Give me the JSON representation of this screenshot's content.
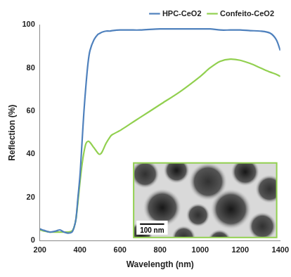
{
  "chart_data": {
    "type": "line",
    "x_label": "Wavelength (nm)",
    "y_label": "Reflection (%)",
    "x": [
      200,
      220,
      250,
      280,
      300,
      320,
      340,
      360,
      370,
      380,
      390,
      400,
      410,
      420,
      430,
      440,
      450,
      470,
      490,
      500,
      510,
      530,
      550,
      560,
      600,
      650,
      700,
      800,
      900,
      1000,
      1050,
      1100,
      1150,
      1200,
      1250,
      1300,
      1350,
      1380,
      1400
    ],
    "series": [
      {
        "name": "HPC-CeO2",
        "color": "#4f81bd",
        "values": [
          5.5,
          4.8,
          4,
          4.5,
          5,
          4,
          3.5,
          4,
          6,
          10,
          20,
          30,
          45,
          60,
          72,
          82,
          88,
          93,
          95.5,
          96,
          96.5,
          97,
          97,
          97.2,
          97.5,
          97.5,
          97.5,
          98,
          98,
          98,
          98,
          97.5,
          97.5,
          97.5,
          97.2,
          97,
          96,
          93,
          88
        ]
      },
      {
        "name": "Confeito-CeO2",
        "color": "#92d050",
        "values": [
          5,
          4.5,
          4,
          4,
          4,
          4,
          4,
          4.5,
          6,
          10,
          18,
          27,
          35,
          41,
          45,
          46,
          45.5,
          43,
          40.5,
          40,
          41,
          45,
          48,
          49,
          51,
          54,
          57,
          63,
          69,
          76,
          80,
          83,
          84,
          83.5,
          82,
          80,
          78,
          77,
          76
        ]
      }
    ],
    "xlim": [
      200,
      1400
    ],
    "xticks": [
      200,
      400,
      600,
      800,
      1000,
      1200,
      1400
    ],
    "ylim": [
      0,
      100
    ],
    "yticks": [
      0,
      20,
      40,
      60,
      80,
      100
    ],
    "grid": false,
    "legend": "top",
    "annotations": [
      "100 nm"
    ]
  }
}
